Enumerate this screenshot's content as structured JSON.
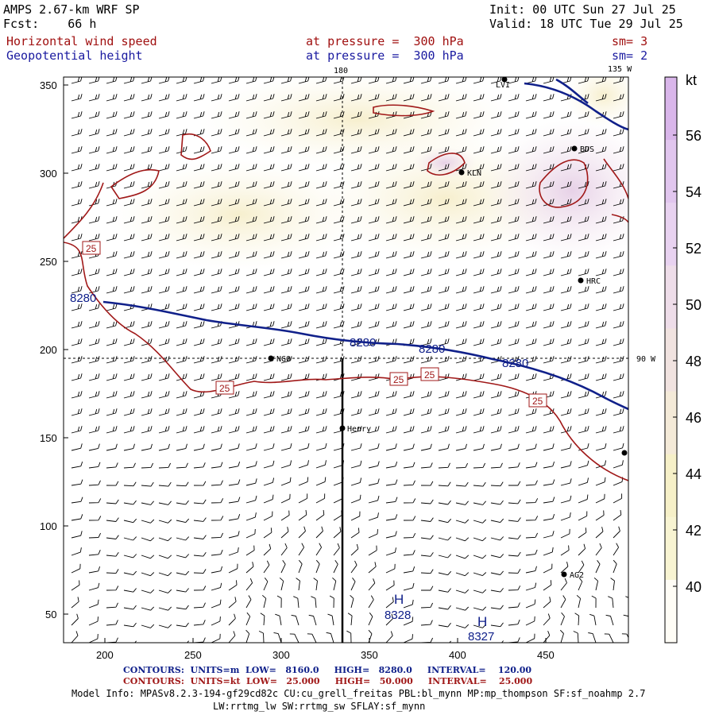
{
  "header": {
    "model": "AMPS 2.67-km WRF SP",
    "fcst_label": "Fcst:",
    "fcst_value": "66 h",
    "init": "Init: 00 UTC Sun 27 Jul 25",
    "valid": "Valid: 18 UTC Tue 29 Jul 25",
    "field1": "Horizontal wind speed",
    "field1_level": "at pressure =  300 hPa",
    "field1_sm": "sm= 3",
    "field2": "Geopotential height",
    "field2_level": "at pressure =  300 hPa",
    "field2_sm": "sm= 2"
  },
  "map": {
    "lon_label_top": "180",
    "lon_label_right_top": "135 W",
    "lon_label_right": "90 W",
    "x_ticks": [
      "200",
      "250",
      "300",
      "350",
      "400",
      "450"
    ],
    "y_ticks": [
      "350",
      "300",
      "250",
      "200",
      "150",
      "100",
      "50"
    ],
    "stations": [
      {
        "id": "LVI",
        "name": "LVI"
      },
      {
        "id": "BDS",
        "name": "BDS"
      },
      {
        "id": "KLN",
        "name": "KLN"
      },
      {
        "id": "HRC",
        "name": "HRC"
      },
      {
        "id": "NGO",
        "name": "NGO"
      },
      {
        "id": "HEN",
        "name": "Henry"
      },
      {
        "id": "AG2",
        "name": "AG2"
      }
    ],
    "height_contour_labels": [
      "8280",
      "8280",
      "8280",
      "8280"
    ],
    "wind_contour_labels": [
      "25",
      "25",
      "25",
      "25",
      "25"
    ],
    "highs": [
      {
        "symbol": "H",
        "value": "8328"
      },
      {
        "symbol": "H",
        "value": "8327"
      }
    ]
  },
  "colorbar": {
    "unit": "kt",
    "ticks": [
      "56",
      "54",
      "52",
      "50",
      "48",
      "46",
      "44",
      "42",
      "40"
    ],
    "colors": [
      "#d9b6ea",
      "#e1c6ee",
      "#e8d2f0",
      "#eedde9",
      "#f1e3e0",
      "#f4ead8",
      "#f6f0c8",
      "#f8f4d2",
      "#fffdf6"
    ]
  },
  "footer": {
    "line1_a": "CONTOURS:  UNITS=m  LOW=   8160.0",
    "line1_b": "HIGH=   8280.0",
    "line1_c": "INTERVAL=    120.00",
    "line2_a": "CONTOURS:  UNITS=kt  LOW=   25.000",
    "line2_b": "HIGH=   50.000",
    "line2_c": "INTERVAL=    25.000",
    "info1": "Model Info: MPASv8.2.3-194-gf29cd82c CU:cu_grell_freitas PBL:bl_mynn MP:mp_thompson SF:sf_noahmp 2.7",
    "info2": "LW:rrtmg_lw SW:rrtmg_sw SFLAY:sf_mynn"
  }
}
